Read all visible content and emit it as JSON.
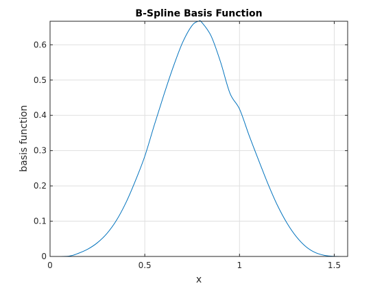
{
  "chart_data": {
    "type": "line",
    "title": "B-Spline Basis Function",
    "xlabel": "x",
    "ylabel": "basis function",
    "xlim": [
      0,
      1.5708
    ],
    "ylim": [
      0,
      0.6667
    ],
    "xticks": [
      0,
      0.5,
      1,
      1.5
    ],
    "xtick_labels": [
      "0",
      "0.5",
      "1",
      "1.5"
    ],
    "yticks": [
      0,
      0.1,
      0.2,
      0.3,
      0.4,
      0.5,
      0.6
    ],
    "ytick_labels": [
      "0",
      "0.1",
      "0.2",
      "0.3",
      "0.4",
      "0.5",
      "0.6"
    ],
    "grid": true,
    "series": [
      {
        "color": "#0072bd",
        "x": [
          0,
          0.1,
          0.15,
          0.2,
          0.25,
          0.3,
          0.35,
          0.4,
          0.45,
          0.5,
          0.55,
          0.6,
          0.65,
          0.7,
          0.75,
          0.785,
          0.8,
          0.85,
          0.9,
          0.95,
          1.0,
          1.05,
          1.1,
          1.15,
          1.2,
          1.25,
          1.3,
          1.35,
          1.4,
          1.45,
          1.5,
          1.5708
        ],
        "y": [
          0,
          0.001,
          0.009,
          0.021,
          0.039,
          0.065,
          0.102,
          0.152,
          0.214,
          0.284,
          0.372,
          0.457,
          0.537,
          0.607,
          0.655,
          0.667,
          0.664,
          0.625,
          0.551,
          0.462,
          0.418,
          0.344,
          0.274,
          0.206,
          0.145,
          0.095,
          0.056,
          0.028,
          0.011,
          0.003,
          0.0005,
          0
        ]
      }
    ]
  }
}
